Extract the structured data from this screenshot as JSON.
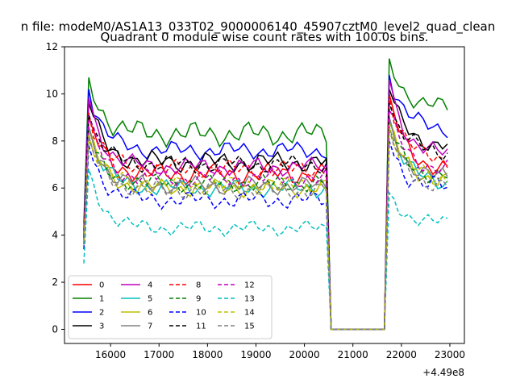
{
  "chart_data": {
    "type": "line",
    "suptitle": "n file: modeM0/AS1A13_033T02_9000006140_45907cztM0_level2_quad_clean",
    "title": "Quadrant 0 module wise count rates with 100.0s bins.",
    "xlabel": "",
    "ylabel": "",
    "x_offset_label": "+4.49e8",
    "xlim": [
      15050,
      23300
    ],
    "ylim": [
      -0.6,
      12
    ],
    "xticks": [
      "16000",
      "17000",
      "18000",
      "19000",
      "20000",
      "21000",
      "22000",
      "23000"
    ],
    "yticks": [
      "0",
      "2",
      "4",
      "6",
      "8",
      "10",
      "12"
    ],
    "grid": false,
    "legend_position": "lower-left",
    "legend_columns": 4,
    "segments": [
      {
        "x_start": 15450,
        "x_end": 20450,
        "step": 100
      },
      {
        "x_start": 20450,
        "x_end": 21650,
        "step": 100
      },
      {
        "x_start": 21650,
        "x_end": 22950,
        "step": 100
      }
    ],
    "series": [
      {
        "name": "0",
        "color": "#ff0000",
        "dash": "solid",
        "segment_levels": [
          {
            "start": 3.8,
            "peak": 9.0,
            "level": 6.6,
            "amp": 0.35
          },
          {
            "start": 0.0,
            "peak": 0.0,
            "level": 0.0,
            "amp": 0
          },
          {
            "start": 0.3,
            "peak": 10.0,
            "level": 6.8,
            "amp": 0.3
          }
        ]
      },
      {
        "name": "1",
        "color": "#008000",
        "dash": "solid",
        "segment_levels": [
          {
            "start": 4.5,
            "peak": 10.7,
            "level": 8.3,
            "amp": 0.4
          },
          {
            "start": 0.0,
            "peak": 0.0,
            "level": 0.0,
            "amp": 0
          },
          {
            "start": 0.4,
            "peak": 11.5,
            "level": 9.4,
            "amp": 0.3
          }
        ]
      },
      {
        "name": "2",
        "color": "#0000ff",
        "dash": "solid",
        "segment_levels": [
          {
            "start": 4.2,
            "peak": 10.2,
            "level": 7.6,
            "amp": 0.3
          },
          {
            "start": 0.0,
            "peak": 0.0,
            "level": 0.0,
            "amp": 0
          },
          {
            "start": 0.4,
            "peak": 10.8,
            "level": 8.5,
            "amp": 0.3
          }
        ]
      },
      {
        "name": "3",
        "color": "#000000",
        "dash": "solid",
        "segment_levels": [
          {
            "start": 4.0,
            "peak": 9.6,
            "level": 7.1,
            "amp": 0.35
          },
          {
            "start": 0.0,
            "peak": 0.0,
            "level": 0.0,
            "amp": 0
          },
          {
            "start": 0.3,
            "peak": 10.2,
            "level": 7.8,
            "amp": 0.3
          }
        ]
      },
      {
        "name": "4",
        "color": "#bf00bf",
        "dash": "solid",
        "segment_levels": [
          {
            "start": 4.0,
            "peak": 9.8,
            "level": 6.9,
            "amp": 0.3
          },
          {
            "start": 0.0,
            "peak": 0.0,
            "level": 0.0,
            "amp": 0
          },
          {
            "start": 0.3,
            "peak": 10.6,
            "level": 7.4,
            "amp": 0.3
          }
        ]
      },
      {
        "name": "5",
        "color": "#00bfbf",
        "dash": "solid",
        "segment_levels": [
          {
            "start": 3.6,
            "peak": 8.6,
            "level": 6.0,
            "amp": 0.3
          },
          {
            "start": 0.0,
            "peak": 0.0,
            "level": 0.0,
            "amp": 0
          },
          {
            "start": 0.3,
            "peak": 9.0,
            "level": 6.2,
            "amp": 0.3
          }
        ]
      },
      {
        "name": "6",
        "color": "#bfbf00",
        "dash": "solid",
        "segment_levels": [
          {
            "start": 3.7,
            "peak": 8.4,
            "level": 6.0,
            "amp": 0.3
          },
          {
            "start": 0.0,
            "peak": 0.0,
            "level": 0.0,
            "amp": 0
          },
          {
            "start": 0.3,
            "peak": 8.8,
            "level": 6.3,
            "amp": 0.3
          }
        ]
      },
      {
        "name": "7",
        "color": "#808080",
        "dash": "solid",
        "segment_levels": [
          {
            "start": 3.7,
            "peak": 8.6,
            "level": 6.1,
            "amp": 0.3
          },
          {
            "start": 0.0,
            "peak": 0.0,
            "level": 0.0,
            "amp": 0
          },
          {
            "start": 0.3,
            "peak": 9.0,
            "level": 6.4,
            "amp": 0.3
          }
        ]
      },
      {
        "name": "8",
        "color": "#ff0000",
        "dash": "dashed",
        "segment_levels": [
          {
            "start": 3.9,
            "peak": 9.2,
            "level": 6.8,
            "amp": 0.3
          },
          {
            "start": 0.0,
            "peak": 0.0,
            "level": 0.0,
            "amp": 0
          },
          {
            "start": 0.3,
            "peak": 9.9,
            "level": 7.2,
            "amp": 0.3
          }
        ]
      },
      {
        "name": "9",
        "color": "#008000",
        "dash": "dashed",
        "segment_levels": [
          {
            "start": 3.6,
            "peak": 8.1,
            "level": 6.2,
            "amp": 0.3
          },
          {
            "start": 0.0,
            "peak": 0.0,
            "level": 0.0,
            "amp": 0
          },
          {
            "start": 0.3,
            "peak": 8.6,
            "level": 6.5,
            "amp": 0.3
          }
        ]
      },
      {
        "name": "10",
        "color": "#0000ff",
        "dash": "dashed",
        "segment_levels": [
          {
            "start": 3.4,
            "peak": 7.8,
            "level": 5.5,
            "amp": 0.3
          },
          {
            "start": 0.0,
            "peak": 0.0,
            "level": 0.0,
            "amp": 0
          },
          {
            "start": 0.3,
            "peak": 8.0,
            "level": 6.0,
            "amp": 0.35
          }
        ]
      },
      {
        "name": "11",
        "color": "#000000",
        "dash": "dashed",
        "segment_levels": [
          {
            "start": 3.9,
            "peak": 9.1,
            "level": 7.0,
            "amp": 0.3
          },
          {
            "start": 0.0,
            "peak": 0.0,
            "level": 0.0,
            "amp": 0
          },
          {
            "start": 0.3,
            "peak": 9.6,
            "level": 7.5,
            "amp": 0.3
          }
        ]
      },
      {
        "name": "12",
        "color": "#bf00bf",
        "dash": "dashed",
        "segment_levels": [
          {
            "start": 3.8,
            "peak": 8.9,
            "level": 6.4,
            "amp": 0.3
          },
          {
            "start": 0.0,
            "peak": 0.0,
            "level": 0.0,
            "amp": 0
          },
          {
            "start": 0.3,
            "peak": 9.3,
            "level": 6.8,
            "amp": 0.3
          }
        ]
      },
      {
        "name": "13",
        "color": "#00bfbf",
        "dash": "dashed",
        "segment_levels": [
          {
            "start": 2.8,
            "peak": 6.8,
            "level": 4.3,
            "amp": 0.25
          },
          {
            "start": 0.0,
            "peak": 0.0,
            "level": 0.0,
            "amp": 0
          },
          {
            "start": 0.2,
            "peak": 5.8,
            "level": 4.5,
            "amp": 0.25
          }
        ]
      },
      {
        "name": "14",
        "color": "#bfbf00",
        "dash": "dashed",
        "segment_levels": [
          {
            "start": 3.7,
            "peak": 8.3,
            "level": 6.1,
            "amp": 0.3
          },
          {
            "start": 0.0,
            "peak": 0.0,
            "level": 0.0,
            "amp": 0
          },
          {
            "start": 0.3,
            "peak": 8.7,
            "level": 6.4,
            "amp": 0.3
          }
        ]
      },
      {
        "name": "15",
        "color": "#808080",
        "dash": "dashed",
        "segment_levels": [
          {
            "start": 3.6,
            "peak": 8.2,
            "level": 5.9,
            "amp": 0.3
          },
          {
            "start": 0.0,
            "peak": 0.0,
            "level": 0.0,
            "amp": 0
          },
          {
            "start": 0.3,
            "peak": 8.5,
            "level": 6.1,
            "amp": 0.3
          }
        ]
      }
    ]
  }
}
